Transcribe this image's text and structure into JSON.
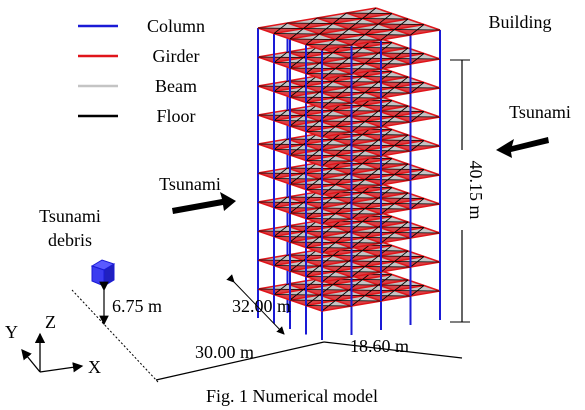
{
  "legend": [
    {
      "label": "Column",
      "color": "#1a1ad6"
    },
    {
      "label": "Girder",
      "color": "#e0151b"
    },
    {
      "label": "Beam",
      "color": "#c4c4c4"
    },
    {
      "label": "Floor",
      "color": "#000000"
    }
  ],
  "labels": {
    "building": "Building",
    "tsunami_left": "Tsunami",
    "tsunami_right": "Tsunami",
    "debris": [
      "Tsunami",
      "debris"
    ],
    "height": "40.15 m",
    "depth": "32.00 m",
    "width": "30.00 m",
    "width_right": "18.60 m",
    "debris_height": "6.75 m"
  },
  "axes": {
    "x": "X",
    "y": "Y",
    "z": "Z"
  },
  "caption": "Fig. 1 Numerical model"
}
